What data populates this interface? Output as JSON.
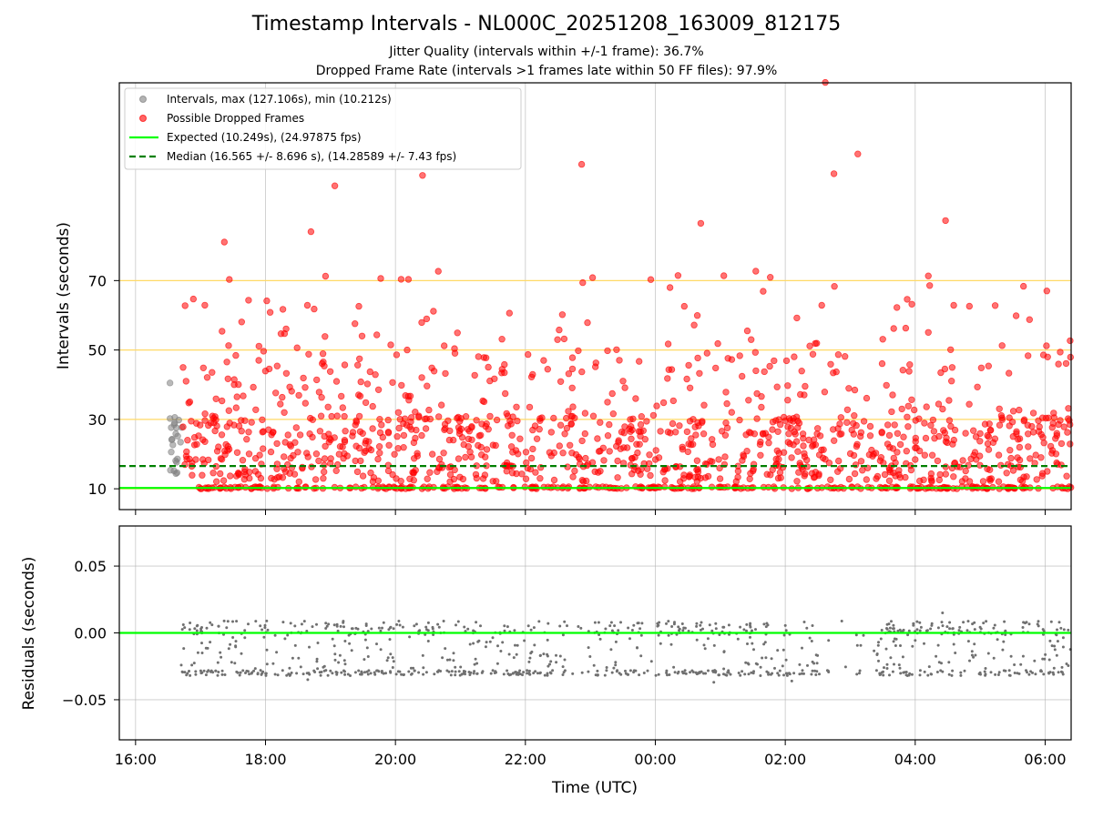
{
  "chart_data": [
    {
      "type": "scatter",
      "title": "Timestamp Intervals - NL000C_20251208_163009_812175",
      "subtitles": [
        "Jitter Quality (intervals within +/-1 frame): 36.7%",
        "Dropped Frame Rate (intervals >1 frames late within 50 FF files): 97.9%"
      ],
      "xlabel": "",
      "ylabel": "Intervals (seconds)",
      "x_range_hours": [
        15.75,
        30.4
      ],
      "ylim": [
        4,
        127
      ],
      "yticks": [
        10,
        30,
        50,
        70
      ],
      "reference_lines": [
        10,
        30,
        50,
        70
      ],
      "reference_line_color": "#ffd966",
      "expected_line": 10.249,
      "median_line": 16.565,
      "legend_position": "top-left",
      "legend": [
        "Intervals, max (127.106s), min (10.212s)",
        "Possible Dropped Frames",
        "Expected (10.249s), (24.97875 fps)",
        "Median (16.565 +/- 8.696 s), (14.28589 +/- 7.43 fps)"
      ],
      "series": [
        {
          "name": "Intervals",
          "color": "#808080",
          "x_start_hours": 16.52,
          "x_end_hours": 16.72,
          "count": 22,
          "y_min": 14,
          "y_max": 40.5
        },
        {
          "name": "Possible Dropped Frames",
          "color": "#ff0000",
          "x_start_hours": 16.72,
          "x_end_hours": 30.4,
          "count": 1400,
          "y_typical_min": 10.2,
          "y_typical_max": 35
        }
      ],
      "notable_points": [
        {
          "time": "02:37",
          "value": 127.1
        },
        {
          "time": "22:52",
          "value": 103.5
        },
        {
          "time": "03:07",
          "value": 106.5
        },
        {
          "time": "02:45",
          "value": 100.8
        },
        {
          "time": "20:25",
          "value": 100.3
        },
        {
          "time": "19:04",
          "value": 97.3
        },
        {
          "time": "04:28",
          "value": 87.3
        },
        {
          "time": "00:42",
          "value": 86.5
        },
        {
          "time": "18:42",
          "value": 84.1
        },
        {
          "time": "17:22",
          "value": 81.1
        }
      ]
    },
    {
      "type": "scatter",
      "xlabel": "Time (UTC)",
      "ylabel": "Residuals (seconds)",
      "ylim": [
        -0.08,
        0.08
      ],
      "yticks": [
        0.05,
        0.0,
        -0.05
      ],
      "ytick_labels": [
        "0.05",
        "0.00",
        "−0.05"
      ],
      "zero_line": 0.0,
      "series": [
        {
          "name": "Residuals",
          "color": "#707070",
          "bands": [
            0.005,
            -0.01,
            -0.03
          ],
          "range": [
            -0.037,
            0.015
          ]
        }
      ]
    }
  ],
  "x_axis": {
    "tick_labels": [
      "16:00",
      "18:00",
      "20:00",
      "22:00",
      "00:00",
      "02:00",
      "04:00",
      "06:00"
    ],
    "tick_hours": [
      16,
      18,
      20,
      22,
      24,
      26,
      28,
      30
    ]
  },
  "colors": {
    "dropped": "#ff0000",
    "interval": "#808080",
    "expected": "#00ff00",
    "median": "#008000",
    "residual": "#707070",
    "grid": "#b0b0b0"
  }
}
